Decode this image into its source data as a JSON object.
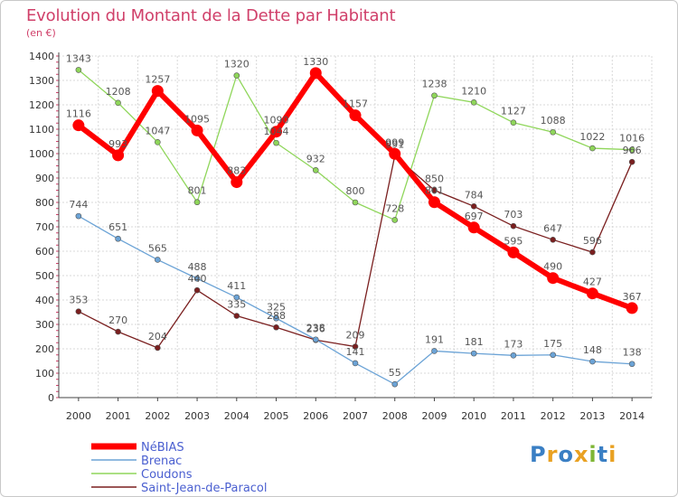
{
  "title": "Evolution du Montant de la Dette par Habitant",
  "subtitle": "(en €)",
  "logo": "Proxiti",
  "chart_data": {
    "type": "line",
    "title": "Evolution du Montant de la Dette par Habitant",
    "subtitle": "(en €)",
    "xlabel": "",
    "ylabel": "",
    "x": [
      "2000",
      "2001",
      "2002",
      "2003",
      "2004",
      "2005",
      "2006",
      "2007",
      "2008",
      "2009",
      "2010",
      "2011",
      "2012",
      "2013",
      "2014"
    ],
    "ylim": [
      0,
      1400
    ],
    "yticks": [
      0,
      100,
      200,
      300,
      400,
      500,
      600,
      700,
      800,
      900,
      1000,
      1100,
      1200,
      1300,
      1400
    ],
    "grid": true,
    "legend_position": "bottom-left",
    "series": [
      {
        "name": "NéBIAS",
        "color": "#ff0000",
        "values": [
          1116,
          993,
          1257,
          1095,
          883,
          1090,
          1330,
          1157,
          999,
          801,
          697,
          595,
          490,
          427,
          367
        ]
      },
      {
        "name": "Brenac",
        "color": "#6ba3d6",
        "values": [
          744,
          651,
          565,
          488,
          411,
          325,
          238,
          141,
          55,
          191,
          181,
          173,
          175,
          148,
          138
        ]
      },
      {
        "name": "Coudons",
        "color": "#8fd65a",
        "values": [
          1343,
          1208,
          1047,
          801,
          1320,
          1044,
          932,
          800,
          728,
          1238,
          1210,
          1127,
          1088,
          1022,
          1016
        ]
      },
      {
        "name": "Saint-Jean-de-Paracol",
        "color": "#7a1f1f",
        "values": [
          353,
          270,
          204,
          440,
          335,
          288,
          236,
          209,
          991,
          850,
          784,
          703,
          647,
          596,
          966
        ]
      }
    ]
  }
}
